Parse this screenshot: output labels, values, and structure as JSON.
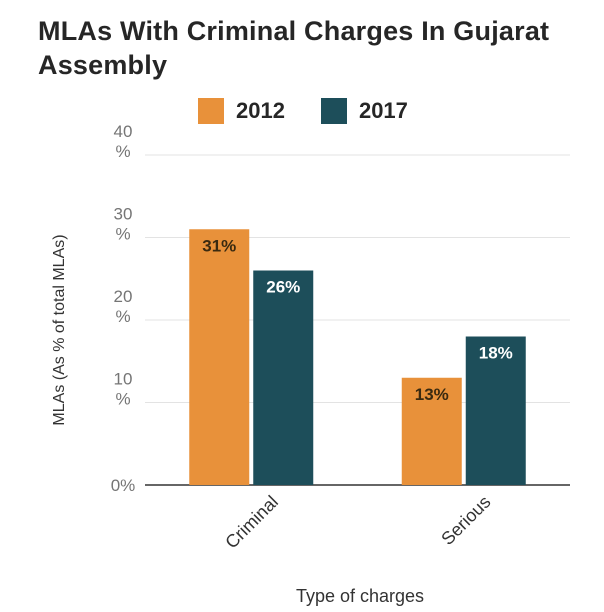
{
  "chart_data": {
    "type": "bar",
    "title": "MLAs With Criminal Charges In Gujarat Assembly",
    "categories": [
      "Criminal",
      "Serious"
    ],
    "series": [
      {
        "name": "2012",
        "values": [
          31,
          13
        ],
        "labels": [
          "31%",
          "13%"
        ],
        "color": "#E8913A",
        "label_color": "#3a2a10"
      },
      {
        "name": "2017",
        "values": [
          26,
          18
        ],
        "labels": [
          "26%",
          "18%"
        ],
        "color": "#1D4E5A",
        "label_color": "#ffffff"
      }
    ],
    "xlabel": "Type of charges",
    "ylabel": "MLAs (As % of total MLAs)",
    "ylim": [
      0,
      40
    ],
    "yticks": [
      0,
      10,
      20,
      30,
      40
    ],
    "ytick_labels": [
      "0%",
      "10 %",
      "20 %",
      "30 %",
      "40 %"
    ],
    "grid": true,
    "legend_position": "top"
  }
}
